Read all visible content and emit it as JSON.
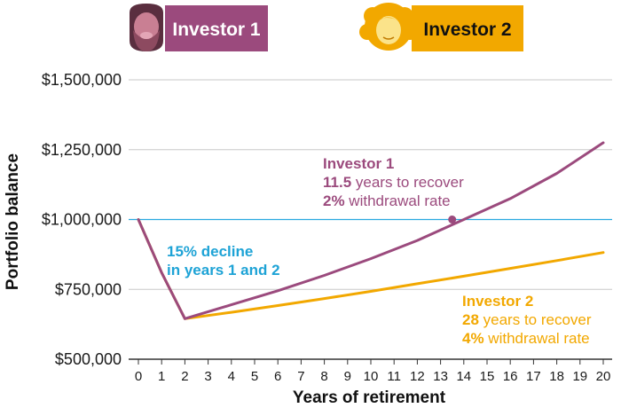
{
  "legend": {
    "investor1": {
      "label": "Investor 1",
      "color": "#9b4a7d",
      "icon": "bearded-man-avatar-icon"
    },
    "investor2": {
      "label": "Investor 2",
      "color": "#f2a800",
      "icon": "woman-avatar-icon"
    }
  },
  "annotations": {
    "decline": {
      "line1": "15% decline",
      "line2": "in years 1 and 2",
      "color": "#1ea3d6"
    },
    "investor1": {
      "title": "Investor 1",
      "years_bold": "11.5",
      "years_rest": " years to recover",
      "rate_bold": "2%",
      "rate_rest": " withdrawal rate"
    },
    "investor2": {
      "title": "Investor 2",
      "years_bold": "28",
      "years_rest": " years to recover",
      "rate_bold": "4%",
      "rate_rest": " withdrawal rate"
    }
  },
  "chart_data": {
    "type": "line",
    "xlabel": "Years of retirement",
    "ylabel": "Portfolio balance",
    "xlim": [
      0,
      20
    ],
    "ylim": [
      500000,
      1500000
    ],
    "x_ticks": [
      "0",
      "1",
      "2",
      "3",
      "4",
      "5",
      "6",
      "7",
      "8",
      "9",
      "10",
      "11",
      "12",
      "13",
      "14",
      "15",
      "16",
      "17",
      "18",
      "19",
      "20"
    ],
    "y_ticks": [
      {
        "value": 500000,
        "label": "$500,000"
      },
      {
        "value": 750000,
        "label": "$750,000"
      },
      {
        "value": 1000000,
        "label": "$1,000,000"
      },
      {
        "value": 1250000,
        "label": "$1,250,000"
      },
      {
        "value": 1500000,
        "label": "$1,500,000"
      }
    ],
    "grid": true,
    "reference_line": {
      "value": 1000000,
      "color": "#29a9e0"
    },
    "series": [
      {
        "name": "Investor 1",
        "color": "#9b4a7d",
        "x": [
          0,
          1,
          2,
          4,
          6,
          8,
          10,
          12,
          14,
          16,
          18,
          20
        ],
        "y": [
          1000000,
          810000,
          645000,
          695000,
          745000,
          800000,
          860000,
          925000,
          1000000,
          1075000,
          1165000,
          1275000
        ]
      },
      {
        "name": "Investor 2",
        "color": "#f2a800",
        "x": [
          0,
          1,
          2,
          4,
          6,
          8,
          10,
          12,
          14,
          16,
          18,
          20
        ],
        "y": [
          1000000,
          810000,
          645000,
          668000,
          692000,
          717000,
          743000,
          770000,
          797000,
          825000,
          853000,
          882000
        ]
      }
    ],
    "markers": [
      {
        "series": "Investor 1",
        "x": 13.5,
        "y": 1000000
      }
    ]
  }
}
